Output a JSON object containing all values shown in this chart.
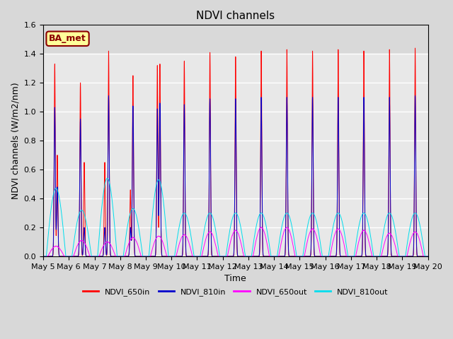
{
  "title": "NDVI channels",
  "xlabel": "Time",
  "ylabel": "NDVI channels (W/m2/nm)",
  "ylim": [
    0,
    1.6
  ],
  "yticks": [
    0.0,
    0.2,
    0.4,
    0.6,
    0.8,
    1.0,
    1.2,
    1.4,
    1.6
  ],
  "xtick_labels": [
    "May 5",
    "May 6",
    "May 7",
    "May 8",
    "May 9",
    "May 10",
    "May 11",
    "May 12",
    "May 13",
    "May 14",
    "May 15",
    "May 16",
    "May 17",
    "May 18",
    "May 19",
    "May 20"
  ],
  "colors": {
    "NDVI_650in": "#ff0000",
    "NDVI_810in": "#0000cc",
    "NDVI_650out": "#ff00ff",
    "NDVI_810out": "#00ddee"
  },
  "legend_labels": [
    "NDVI_650in",
    "NDVI_810in",
    "NDVI_650out",
    "NDVI_810out"
  ],
  "annotation_text": "BA_met",
  "annotation_color": "#8b0000",
  "annotation_bg": "#ffff99",
  "fig_bg": "#d8d8d8",
  "axes_bg": "#e8e8e8",
  "axes_bg_upper": "#d0d0d0",
  "grid_color": "#ffffff",
  "title_fontsize": 11,
  "label_fontsize": 9,
  "tick_fontsize": 8
}
